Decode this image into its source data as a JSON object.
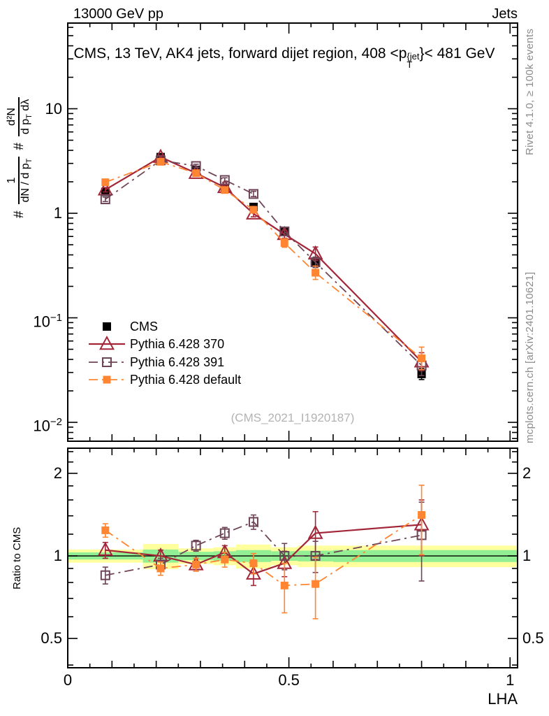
{
  "header": {
    "left": "13000 GeV pp",
    "right": "Jets"
  },
  "title": {
    "prefix": "CMS, 13 TeV, AK4 jets, forward dijet region, 408 <p",
    "sup": "{jet",
    "sub": "T",
    "suffix": "}< 481 GeV"
  },
  "ylabel": {
    "hash": "#",
    "f1num": "1",
    "f1den": "dN / d p",
    "f1densub": "T",
    "f2num": "d²N",
    "f2dena": "d p",
    "f2denasub": "T",
    "f2denb": " dλ"
  },
  "ratio_label": "Ratio to CMS",
  "xlabel": "LHA",
  "watermark": "(CMS_2021_I1920187)",
  "margin_notes": {
    "top": "Rivet 4.1.0, ≥ 100k events",
    "bottom": "mcplots.cern.ch [arXiv:2401.10621]"
  },
  "axis": {
    "x_ticks": [
      {
        "v": 0,
        "label": "0"
      },
      {
        "v": 0.5,
        "label": "0.5"
      },
      {
        "v": 1,
        "label": "1"
      }
    ],
    "top_y_ticks": [
      {
        "v": 10,
        "base": "10",
        "exp": ""
      },
      {
        "v": 1,
        "base": "1",
        "exp": ""
      },
      {
        "v": 0.1,
        "base": "10",
        "exp": "−1"
      },
      {
        "v": 0.01,
        "base": "10",
        "exp": "−2"
      }
    ],
    "ratio_ticks": [
      {
        "v": 2,
        "label": "2"
      },
      {
        "v": 1,
        "label": "1"
      },
      {
        "v": 0.5,
        "label": "0.5"
      }
    ]
  },
  "chart_data": {
    "type": "line",
    "title": "CMS, 13 TeV, AK4 jets, forward dijet region, 408 <p_T^{jet}< 481 GeV",
    "xlabel": "LHA",
    "ylabel": "# 1/(dN/dp_T) d²N/(dp_T dλ)",
    "ratio_ylabel": "Ratio to CMS",
    "xlim": [
      0,
      1.017
    ],
    "top_ylim": [
      0.0066,
      66
    ],
    "ratio_ylim": [
      0.391,
      2.47
    ],
    "grid": false,
    "legend_position": "left-middle",
    "x": [
      0.085,
      0.21,
      0.29,
      0.355,
      0.42,
      0.49,
      0.56,
      0.8
    ],
    "bin_edges": [
      0,
      0.17,
      0.25,
      0.33,
      0.38,
      0.46,
      0.52,
      0.6,
      1.017
    ],
    "series": [
      {
        "name": "CMS",
        "color": "#000000",
        "marker": "square-filled",
        "size": 12,
        "line": "none",
        "values": [
          1.6,
          3.45,
          2.6,
          1.72,
          1.15,
          0.67,
          0.34,
          0.029
        ],
        "err": [
          0.06,
          0.05,
          0.04,
          0.05,
          0.06,
          0.09,
          0.12,
          0.13
        ]
      },
      {
        "name": "Pythia 6.428 370",
        "color": "#a32638",
        "marker": "triangle-open",
        "size": 16,
        "line": "solid",
        "values": [
          1.68,
          3.45,
          2.42,
          1.77,
          0.99,
          0.63,
          0.41,
          0.038
        ],
        "err": [
          0.05,
          0.04,
          0.04,
          0.05,
          0.07,
          0.09,
          0.16,
          0.22
        ],
        "ratio": [
          1.05,
          1.0,
          0.93,
          1.03,
          0.86,
          0.94,
          1.21,
          1.3
        ],
        "ratio_err": [
          0.07,
          0.05,
          0.05,
          0.06,
          0.08,
          0.1,
          0.24,
          0.3
        ]
      },
      {
        "name": "Pythia 6.428 391",
        "color": "#6e4457",
        "marker": "square-open",
        "size": 12,
        "line": "dashdot",
        "values": [
          1.36,
          3.21,
          2.83,
          2.08,
          1.53,
          0.67,
          0.34,
          0.035
        ],
        "err": [
          0.05,
          0.04,
          0.04,
          0.05,
          0.06,
          0.09,
          0.12,
          0.25
        ],
        "ratio": [
          0.85,
          0.93,
          1.09,
          1.21,
          1.33,
          1.0,
          1.0,
          1.19
        ],
        "ratio_err": [
          0.06,
          0.05,
          0.05,
          0.06,
          0.08,
          0.11,
          0.13,
          0.38
        ]
      },
      {
        "name": "Pythia 6.428 default",
        "color": "#ff8532",
        "marker": "square-filled",
        "size": 11,
        "line": "dashdot",
        "values": [
          1.98,
          3.11,
          2.42,
          1.67,
          1.08,
          0.52,
          0.27,
          0.041
        ],
        "err": [
          0.05,
          0.04,
          0.04,
          0.05,
          0.06,
          0.1,
          0.16,
          0.28
        ],
        "ratio": [
          1.24,
          0.9,
          0.93,
          0.97,
          0.94,
          0.78,
          0.79,
          1.41
        ],
        "ratio_err": [
          0.07,
          0.05,
          0.05,
          0.06,
          0.08,
          0.16,
          0.2,
          0.4
        ]
      }
    ],
    "bands": {
      "yellow_color": "#ffff9e",
      "green_color": "#93ef93",
      "yellow_hw": [
        0.055,
        0.105,
        0.065,
        0.075,
        0.1,
        0.075,
        0.09,
        0.09
      ],
      "green_hw": [
        0.03,
        0.055,
        0.035,
        0.04,
        0.05,
        0.04,
        0.045,
        0.05
      ]
    }
  }
}
